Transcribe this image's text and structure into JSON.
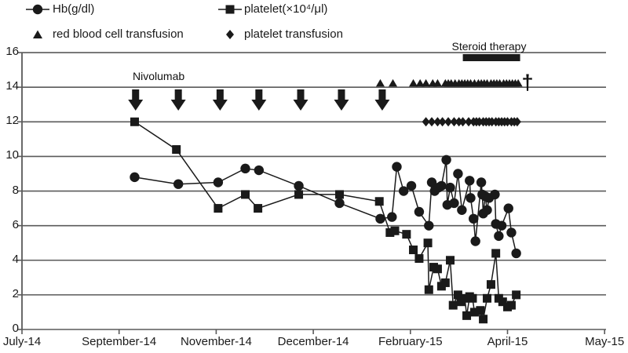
{
  "figure": {
    "background": "#ffffff",
    "ink_color": "#1a1a1a",
    "gridline_color": "#5a5a5a"
  },
  "legend": {
    "items": [
      {
        "label": "Hb(g/dl)",
        "marker": "line-circle"
      },
      {
        "label": "platelet(×10⁴/μl)",
        "marker": "line-square"
      },
      {
        "label": "red blood cell transfusion",
        "marker": "triangle"
      },
      {
        "label": "platelet transfusion",
        "marker": "diamond"
      }
    ]
  },
  "annotations": {
    "nivolumab_label": "Nivolumab",
    "steroid_label": "Steroid therapy",
    "dagger": "†"
  },
  "chart_data": {
    "type": "line",
    "title": "",
    "xlabel": "",
    "ylabel": "",
    "grid": "horizontal",
    "x_axis": {
      "unit": "tick_index",
      "tick_labels": [
        "July-14",
        "September-14",
        "November-14",
        "December-14",
        "February-15",
        "April-15",
        "May-15"
      ],
      "tick_positions": [
        0,
        1,
        2,
        3,
        4,
        5,
        6
      ]
    },
    "y_axis": {
      "range": [
        0,
        16
      ],
      "tick_step": 2,
      "tick_labels": [
        "0",
        "2",
        "4",
        "6",
        "8",
        "10",
        "12",
        "14",
        "16"
      ]
    },
    "series": [
      {
        "name": "Hb(g/dl)",
        "marker": "circle",
        "x": [
          1.16,
          1.61,
          2.02,
          2.3,
          2.44,
          2.85,
          3.27,
          3.69,
          3.81,
          3.86,
          3.93,
          4.01,
          4.09,
          4.19,
          4.22,
          4.25,
          4.29,
          4.32,
          4.37,
          4.38,
          4.41,
          4.45,
          4.49,
          4.53,
          4.61,
          4.62,
          4.65,
          4.67,
          4.73,
          4.74,
          4.75,
          4.77,
          4.79,
          4.81,
          4.87,
          4.88,
          4.91,
          4.94,
          5.01,
          5.04,
          5.09
        ],
        "y": [
          8.8,
          8.4,
          8.5,
          9.3,
          9.2,
          8.3,
          7.3,
          6.4,
          6.5,
          9.4,
          8.0,
          8.3,
          6.8,
          6.0,
          8.5,
          8.0,
          8.2,
          8.3,
          9.8,
          7.2,
          8.2,
          7.3,
          9.0,
          6.9,
          8.6,
          7.6,
          6.4,
          5.1,
          8.5,
          7.8,
          6.7,
          7.7,
          6.9,
          7.6,
          7.8,
          6.1,
          5.4,
          6.0,
          7.0,
          5.6,
          4.4
        ]
      },
      {
        "name": "platelet(×10⁴/μl)",
        "marker": "square",
        "x": [
          1.16,
          1.59,
          2.02,
          2.3,
          2.43,
          2.85,
          3.27,
          3.68,
          3.79,
          3.84,
          3.96,
          4.03,
          4.09,
          4.18,
          4.19,
          4.24,
          4.28,
          4.32,
          4.36,
          4.41,
          4.44,
          4.49,
          4.52,
          4.56,
          4.58,
          4.61,
          4.64,
          4.66,
          4.72,
          4.75,
          4.79,
          4.83,
          4.88,
          4.91,
          4.95,
          5.0,
          5.04,
          5.09
        ],
        "y": [
          12.0,
          10.4,
          7.0,
          7.8,
          7.0,
          7.8,
          7.8,
          7.4,
          5.6,
          5.7,
          5.5,
          4.6,
          4.1,
          5.0,
          2.3,
          3.6,
          3.5,
          2.5,
          2.7,
          4.0,
          1.4,
          2.0,
          1.6,
          1.8,
          0.8,
          1.9,
          1.8,
          1.0,
          1.1,
          0.6,
          1.8,
          2.6,
          4.4,
          1.8,
          1.6,
          1.3,
          1.4,
          2.0
        ]
      }
    ],
    "events": {
      "nivolumab_arrows_x": [
        1.17,
        1.61,
        2.04,
        2.44,
        2.87,
        3.29,
        3.71
      ],
      "rbc_transfusion_x": [
        3.69,
        3.82,
        4.03,
        4.1,
        4.16,
        4.23,
        4.28,
        4.36,
        4.39,
        4.42,
        4.46,
        4.5,
        4.53,
        4.56,
        4.59,
        4.62,
        4.66,
        4.7,
        4.73,
        4.76,
        4.79,
        4.83,
        4.86,
        4.89,
        4.92,
        4.96,
        4.99,
        5.02,
        5.05,
        5.08,
        5.11
      ],
      "platelet_transfusion_x": [
        4.16,
        4.22,
        4.28,
        4.33,
        4.39,
        4.45,
        4.5,
        4.54,
        4.6,
        4.65,
        4.68,
        4.71,
        4.75,
        4.78,
        4.81,
        4.84,
        4.88,
        4.91,
        4.94,
        4.97,
        5.0,
        5.04,
        5.07,
        5.1
      ],
      "steroid_therapy_span_x": [
        4.54,
        5.13
      ],
      "death_dagger_x": 5.21
    }
  }
}
